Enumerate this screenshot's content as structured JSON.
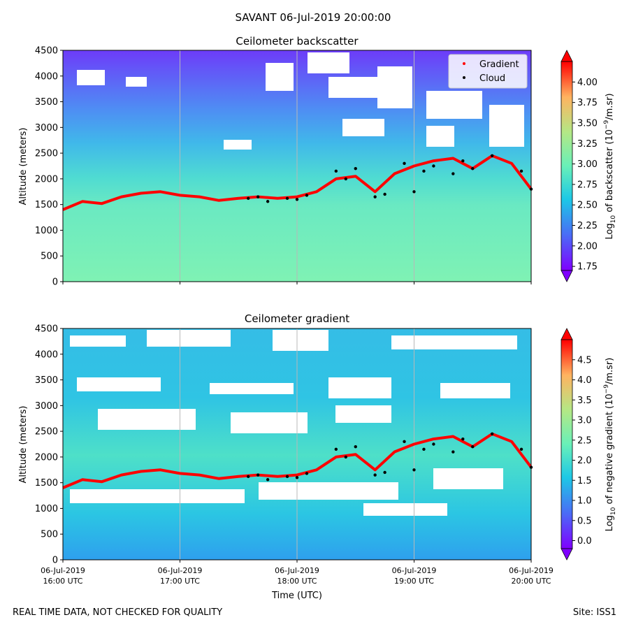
{
  "suptitle": "SAVANT 06-Jul-2019 20:00:00",
  "footer": {
    "left": "REAL TIME DATA, NOT CHECKED FOR QUALITY",
    "right": "Site: ISS1"
  },
  "colors": {
    "gradient_marker": "#ff0000",
    "cloud_marker": "#000000",
    "colormap": [
      "#7f00ff",
      "#4a6cf6",
      "#1dc8e6",
      "#69f0b8",
      "#b3e886",
      "#ffb360",
      "#ff0000"
    ]
  },
  "chart_data": [
    {
      "type": "heatmap",
      "title": "Ceilometer backscatter",
      "ylabel": "Altitude (meters)",
      "xlabel": "",
      "xlim": [
        "16:00",
        "20:00"
      ],
      "ylim": [
        0,
        4500
      ],
      "yticks": [
        0,
        500,
        1000,
        1500,
        2000,
        2500,
        3000,
        3500,
        4000,
        4500
      ],
      "grid": "x",
      "legend": {
        "placement": "top-right",
        "entries": [
          {
            "name": "Gradient",
            "color": "#ff0000"
          },
          {
            "name": "Cloud",
            "color": "#000000"
          }
        ]
      },
      "colorbar": {
        "label_prefix": "Log",
        "label_sub": "10",
        "label_mid": " of backscatter (10",
        "label_sup": "−9",
        "label_suffix": "/m.sr)",
        "range": [
          1.7,
          4.25
        ],
        "ticks": [
          "1.75",
          "2.00",
          "2.25",
          "2.50",
          "2.75",
          "3.00",
          "3.25",
          "3.50",
          "3.75",
          "4.00"
        ]
      },
      "gradient_series": {
        "name": "Gradient",
        "x": [
          "16:00",
          "16:10",
          "16:20",
          "16:30",
          "16:40",
          "16:50",
          "17:00",
          "17:10",
          "17:20",
          "17:30",
          "17:40",
          "17:50",
          "18:00",
          "18:10",
          "18:20",
          "18:30",
          "18:40",
          "18:50",
          "19:00",
          "19:10",
          "19:20",
          "19:30",
          "19:40",
          "19:50",
          "20:00"
        ],
        "y": [
          1400,
          1560,
          1520,
          1650,
          1720,
          1750,
          1680,
          1650,
          1580,
          1620,
          1650,
          1620,
          1650,
          1750,
          2000,
          2050,
          1750,
          2100,
          2250,
          2350,
          2400,
          2200,
          2450,
          2300,
          1800
        ]
      },
      "cloud_series": {
        "name": "Cloud",
        "x": [
          "17:35",
          "17:40",
          "17:45",
          "17:55",
          "18:00",
          "18:05",
          "18:20",
          "18:25",
          "18:30",
          "18:40",
          "18:45",
          "18:55",
          "19:00",
          "19:05",
          "19:10",
          "19:20",
          "19:25",
          "19:30",
          "19:40",
          "19:55",
          "20:00"
        ],
        "y": [
          1620,
          1650,
          1560,
          1620,
          1600,
          1680,
          2150,
          2000,
          2200,
          1650,
          1700,
          2300,
          1750,
          2150,
          2250,
          2100,
          2350,
          2200,
          2450,
          2150,
          1800
        ]
      }
    },
    {
      "type": "heatmap",
      "title": "Ceilometer gradient",
      "ylabel": "Altitude (meters)",
      "xlabel": "Time (UTC)",
      "xlim": [
        "16:00",
        "20:00"
      ],
      "ylim": [
        0,
        4500
      ],
      "yticks": [
        0,
        500,
        1000,
        1500,
        2000,
        2500,
        3000,
        3500,
        4000,
        4500
      ],
      "xticks": [
        {
          "date": "06-Jul-2019",
          "time": "16:00 UTC"
        },
        {
          "date": "06-Jul-2019",
          "time": "17:00 UTC"
        },
        {
          "date": "06-Jul-2019",
          "time": "18:00 UTC"
        },
        {
          "date": "06-Jul-2019",
          "time": "19:00 UTC"
        },
        {
          "date": "06-Jul-2019",
          "time": "20:00 UTC"
        }
      ],
      "grid": "x",
      "colorbar": {
        "label_prefix": "Log",
        "label_sub": "10",
        "label_mid": " of negative gradient (10",
        "label_sup": "−9",
        "label_suffix": "/m.sr)",
        "range": [
          -0.2,
          5.0
        ],
        "ticks": [
          "0.0",
          "0.5",
          "1.0",
          "1.5",
          "2.0",
          "2.5",
          "3.0",
          "3.5",
          "4.0",
          "4.5"
        ]
      },
      "gradient_series": {
        "name": "Gradient",
        "x": [
          "16:00",
          "16:10",
          "16:20",
          "16:30",
          "16:40",
          "16:50",
          "17:00",
          "17:10",
          "17:20",
          "17:30",
          "17:40",
          "17:50",
          "18:00",
          "18:10",
          "18:20",
          "18:30",
          "18:40",
          "18:50",
          "19:00",
          "19:10",
          "19:20",
          "19:30",
          "19:40",
          "19:50",
          "20:00"
        ],
        "y": [
          1400,
          1560,
          1520,
          1650,
          1720,
          1750,
          1680,
          1650,
          1580,
          1620,
          1650,
          1620,
          1650,
          1750,
          2000,
          2050,
          1750,
          2100,
          2250,
          2350,
          2400,
          2200,
          2450,
          2300,
          1800
        ]
      },
      "cloud_series": {
        "name": "Cloud",
        "x": [
          "17:35",
          "17:40",
          "17:45",
          "17:55",
          "18:00",
          "18:05",
          "18:20",
          "18:25",
          "18:30",
          "18:40",
          "18:45",
          "18:55",
          "19:00",
          "19:05",
          "19:10",
          "19:20",
          "19:25",
          "19:30",
          "19:40",
          "19:55",
          "20:00"
        ],
        "y": [
          1620,
          1650,
          1560,
          1620,
          1600,
          1680,
          2150,
          2000,
          2200,
          1650,
          1700,
          2300,
          1750,
          2150,
          2250,
          2100,
          2350,
          2200,
          2450,
          2150,
          1800
        ]
      }
    }
  ]
}
